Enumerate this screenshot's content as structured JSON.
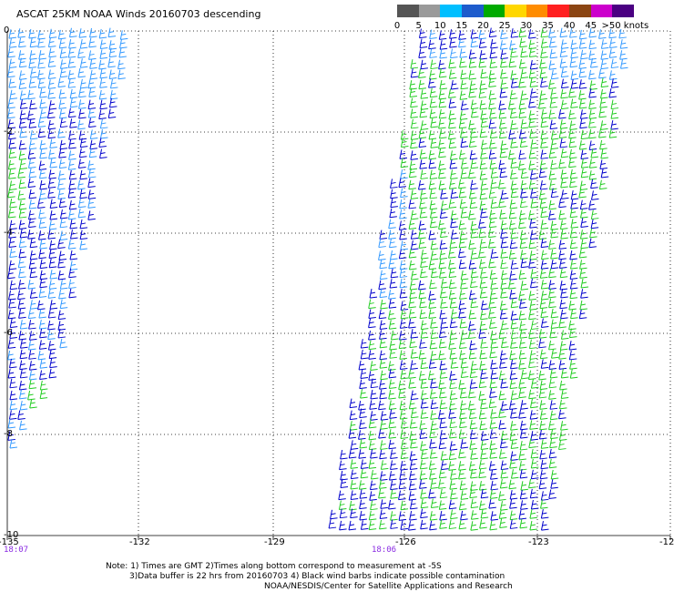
{
  "title": "ASCAT 25KM NOAA Winds 20160703 descending",
  "legend": {
    "bins": [
      {
        "label": "0",
        "color": "#555555"
      },
      {
        "label": "5",
        "color": "#9a9a9a"
      },
      {
        "label": "10",
        "color": "#00bfff"
      },
      {
        "label": "15",
        "color": "#1e5ccc"
      },
      {
        "label": "20",
        "color": "#00aa00"
      },
      {
        "label": "25",
        "color": "#ffd700"
      },
      {
        "label": "30",
        "color": "#ff8c00"
      },
      {
        "label": "35",
        "color": "#ff2020"
      },
      {
        "label": "40",
        "color": "#8b4513"
      },
      {
        "label": "45",
        "color": "#cc00cc"
      },
      {
        "label": ">50 knots",
        "color": "#4b0082"
      }
    ]
  },
  "axes": {
    "lon_ticks": [
      "-135",
      "-132",
      "-129",
      "-126",
      "-123",
      "-12"
    ],
    "lat_ticks": [
      "0",
      "-2",
      "-4",
      "-6",
      "-8",
      "-10"
    ]
  },
  "times": [
    "18:07",
    "18:06"
  ],
  "notes": [
    "Note: 1) Times are GMT 2)Times along bottom correspond to measurement at -5S",
    "3)Data buffer is 22 hrs from 20160703 4) Black wind barbs indicate possible contamination",
    "NOAA/NESDIS/Center for Satellite Applications and Research"
  ],
  "colors": {
    "barb_light": "#3399ff",
    "barb_dark": "#0000cc",
    "barb_green": "#22cc22",
    "grid": "#000000"
  }
}
